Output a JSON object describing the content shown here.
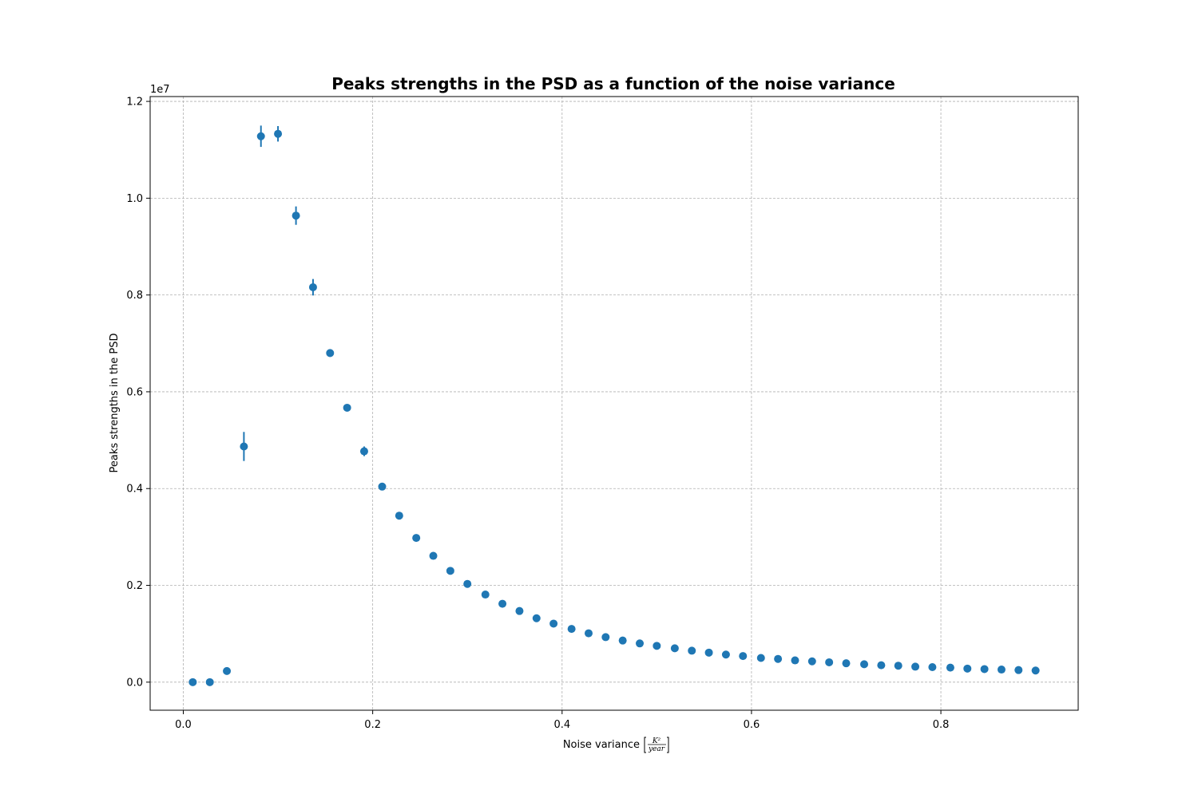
{
  "chart_data": {
    "type": "scatter",
    "title": "Peaks strengths in the PSD as a function of the noise variance",
    "xlabel": "Noise variance",
    "xlabel_unit_num": "K²",
    "xlabel_unit_den": "year",
    "ylabel": "Peaks strengths in the PSD",
    "y_scale_label": "1e7",
    "xlim": [
      -0.035,
      0.945
    ],
    "ylim": [
      -0.058,
      1.21
    ],
    "x_ticks": [
      0.0,
      0.2,
      0.4,
      0.6,
      0.8
    ],
    "x_tick_labels": [
      "0.0",
      "0.2",
      "0.4",
      "0.6",
      "0.8"
    ],
    "y_ticks": [
      0.0,
      0.2,
      0.4,
      0.6,
      0.8,
      1.0,
      1.2
    ],
    "y_tick_labels": [
      "0.0",
      "0.2",
      "0.4",
      "0.6",
      "0.8",
      "1.0",
      "1.2"
    ],
    "grid": true,
    "color": "#1f77b4",
    "x": [
      0.01,
      0.028,
      0.046,
      0.064,
      0.082,
      0.1,
      0.119,
      0.137,
      0.155,
      0.173,
      0.191,
      0.21,
      0.228,
      0.246,
      0.264,
      0.282,
      0.3,
      0.319,
      0.337,
      0.355,
      0.373,
      0.391,
      0.41,
      0.428,
      0.446,
      0.464,
      0.482,
      0.5,
      0.519,
      0.537,
      0.555,
      0.573,
      0.591,
      0.61,
      0.628,
      0.646,
      0.664,
      0.682,
      0.7,
      0.719,
      0.737,
      0.755,
      0.773,
      0.791,
      0.81,
      0.828,
      0.846,
      0.864,
      0.882,
      0.9
    ],
    "y": [
      0.0,
      0.0,
      0.023,
      0.487,
      1.128,
      1.133,
      0.964,
      0.816,
      0.68,
      0.567,
      0.477,
      0.404,
      0.344,
      0.298,
      0.261,
      0.23,
      0.203,
      0.181,
      0.162,
      0.147,
      0.132,
      0.121,
      0.11,
      0.101,
      0.093,
      0.086,
      0.08,
      0.075,
      0.07,
      0.065,
      0.061,
      0.057,
      0.054,
      0.05,
      0.048,
      0.045,
      0.043,
      0.041,
      0.039,
      0.037,
      0.035,
      0.034,
      0.032,
      0.031,
      0.03,
      0.028,
      0.027,
      0.026,
      0.025,
      0.024
    ],
    "yerr": [
      0.0,
      0.0,
      0.0,
      0.03,
      0.022,
      0.016,
      0.019,
      0.017,
      0.008,
      0.0,
      0.01,
      0.0,
      0.0,
      0.0,
      0.0,
      0.0,
      0.0,
      0.0,
      0.0,
      0.0,
      0.0,
      0.0,
      0.0,
      0.0,
      0.0,
      0.0,
      0.0,
      0.0,
      0.0,
      0.0,
      0.0,
      0.0,
      0.0,
      0.0,
      0.0,
      0.0,
      0.0,
      0.0,
      0.0,
      0.0,
      0.0,
      0.0,
      0.0,
      0.0,
      0.0,
      0.0,
      0.0,
      0.0,
      0.0,
      0.0
    ]
  }
}
